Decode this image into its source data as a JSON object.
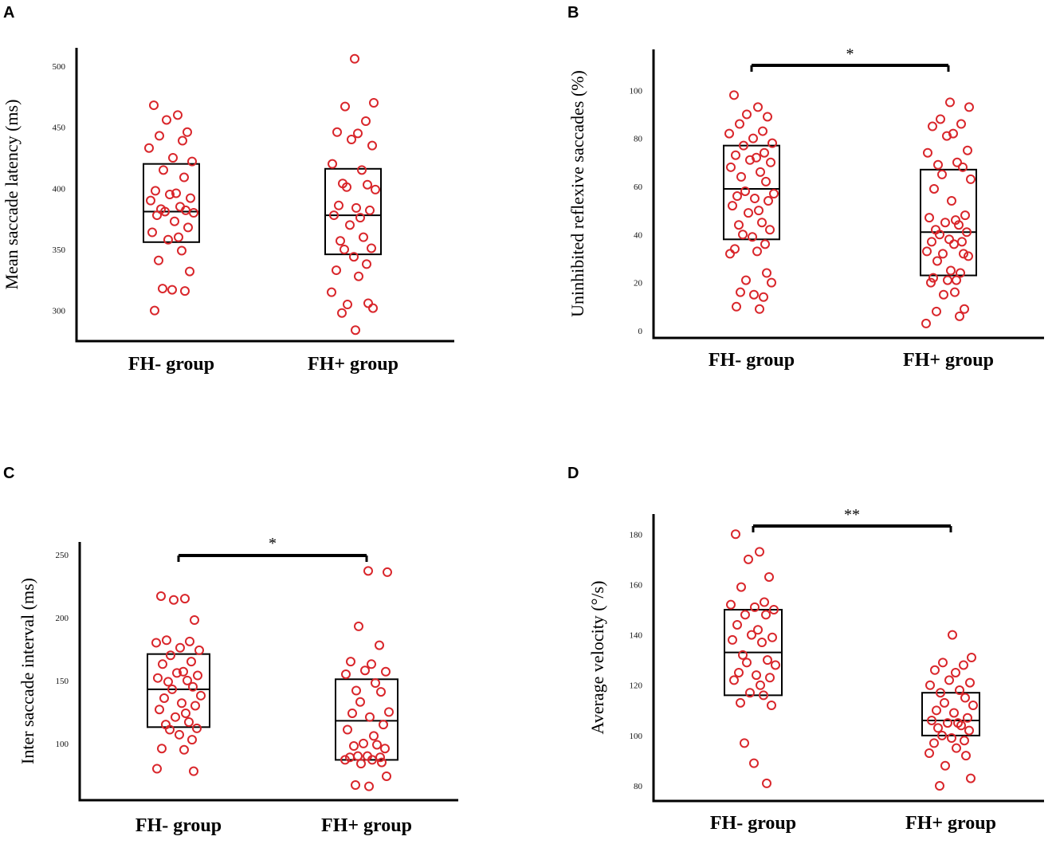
{
  "chart_data": [
    {
      "type": "scatter",
      "panel": "A",
      "ylabel": "Mean saccade latency (ms)",
      "ylim": [
        275,
        515
      ],
      "yticks": [
        300,
        350,
        400,
        450,
        500
      ],
      "categories": [
        "FH-  group",
        "FH+ group"
      ],
      "series": [
        {
          "name": "FH-  group",
          "box": {
            "q1": 356,
            "median": 381,
            "q3": 420
          },
          "values": [
            468,
            460,
            456,
            446,
            443,
            439,
            433,
            425,
            422,
            415,
            409,
            398,
            396,
            395,
            392,
            390,
            385,
            383,
            382,
            381,
            380,
            378,
            373,
            368,
            364,
            360,
            358,
            349,
            341,
            332,
            318,
            317,
            316,
            300
          ]
        },
        {
          "name": "FH+ group",
          "box": {
            "q1": 346,
            "median": 378,
            "q3": 416
          },
          "values": [
            506,
            470,
            467,
            455,
            446,
            445,
            440,
            435,
            420,
            415,
            404,
            403,
            401,
            399,
            386,
            384,
            382,
            378,
            376,
            370,
            360,
            357,
            351,
            350,
            344,
            338,
            333,
            328,
            315,
            306,
            305,
            302,
            298,
            284
          ]
        }
      ],
      "significance": ""
    },
    {
      "type": "scatter",
      "panel": "B",
      "ylabel": "Uninhibited reflexive saccades (%)",
      "ylim": [
        -3,
        117
      ],
      "yticks": [
        0,
        20,
        40,
        60,
        80,
        100
      ],
      "categories": [
        "FH-  group",
        "FH+ group"
      ],
      "series": [
        {
          "name": "FH-  group",
          "box": {
            "q1": 38,
            "median": 59,
            "q3": 77
          },
          "values": [
            98,
            93,
            90,
            89,
            86,
            83,
            82,
            80,
            78,
            77,
            74,
            73,
            72,
            71,
            70,
            68,
            66,
            64,
            62,
            58,
            57,
            56,
            55,
            54,
            52,
            50,
            49,
            45,
            44,
            42,
            40,
            39,
            36,
            34,
            33,
            32,
            24,
            21,
            20,
            16,
            15,
            14,
            10,
            9
          ]
        },
        {
          "name": "FH+ group",
          "box": {
            "q1": 23,
            "median": 41,
            "q3": 67
          },
          "values": [
            95,
            93,
            88,
            86,
            85,
            82,
            81,
            75,
            74,
            70,
            69,
            68,
            65,
            63,
            59,
            54,
            48,
            47,
            46,
            45,
            44,
            42,
            41,
            40,
            38,
            37,
            37,
            36,
            33,
            32,
            32,
            31,
            29,
            25,
            24,
            22,
            21,
            21,
            20,
            16,
            15,
            9,
            8,
            6,
            3
          ]
        }
      ],
      "significance": "*"
    },
    {
      "type": "scatter",
      "panel": "C",
      "ylabel": "Inter saccade interval (ms)",
      "ylim": [
        55,
        260
      ],
      "yticks": [
        100,
        150,
        200,
        250
      ],
      "categories": [
        "FH-  group",
        "FH+ group"
      ],
      "series": [
        {
          "name": "FH-  group",
          "box": {
            "q1": 113,
            "median": 143,
            "q3": 171
          },
          "values": [
            217,
            215,
            214,
            198,
            182,
            181,
            180,
            176,
            174,
            170,
            165,
            163,
            157,
            156,
            154,
            152,
            150,
            149,
            145,
            143,
            138,
            136,
            132,
            130,
            127,
            124,
            121,
            117,
            115,
            112,
            111,
            107,
            103,
            96,
            95,
            80,
            78
          ]
        },
        {
          "name": "FH+ group",
          "box": {
            "q1": 87,
            "median": 118,
            "q3": 151
          },
          "values": [
            237,
            236,
            193,
            178,
            165,
            163,
            158,
            157,
            155,
            148,
            142,
            141,
            133,
            125,
            124,
            121,
            115,
            111,
            106,
            100,
            99,
            98,
            96,
            90,
            90,
            89,
            89,
            87,
            87,
            85,
            84,
            74,
            67,
            66
          ]
        }
      ],
      "significance": "*"
    },
    {
      "type": "scatter",
      "panel": "D",
      "ylabel": "Average velocity (°/s)",
      "ylim": [
        74,
        188
      ],
      "yticks": [
        80,
        100,
        120,
        140,
        160,
        180
      ],
      "categories": [
        "FH-  group",
        "FH+ group"
      ],
      "series": [
        {
          "name": "FH-  group",
          "box": {
            "q1": 116,
            "median": 133,
            "q3": 150
          },
          "values": [
            180,
            173,
            170,
            163,
            159,
            153,
            152,
            151,
            150,
            148,
            148,
            144,
            142,
            140,
            139,
            138,
            137,
            132,
            130,
            129,
            128,
            125,
            124,
            123,
            122,
            120,
            117,
            116,
            113,
            112,
            97,
            89,
            81
          ]
        },
        {
          "name": "FH+ group",
          "box": {
            "q1": 100,
            "median": 106,
            "q3": 117
          },
          "values": [
            140,
            131,
            129,
            128,
            126,
            125,
            122,
            121,
            120,
            118,
            117,
            115,
            113,
            112,
            110,
            109,
            107,
            106,
            105,
            105,
            104,
            103,
            102,
            100,
            99,
            98,
            97,
            95,
            93,
            92,
            88,
            83,
            80
          ]
        }
      ],
      "significance": "**"
    }
  ],
  "panels": {
    "A": {
      "letter": "A"
    },
    "B": {
      "letter": "B"
    },
    "C": {
      "letter": "C"
    },
    "D": {
      "letter": "D"
    }
  },
  "colors": {
    "marker": "#d9262b",
    "axis": "#000000"
  }
}
